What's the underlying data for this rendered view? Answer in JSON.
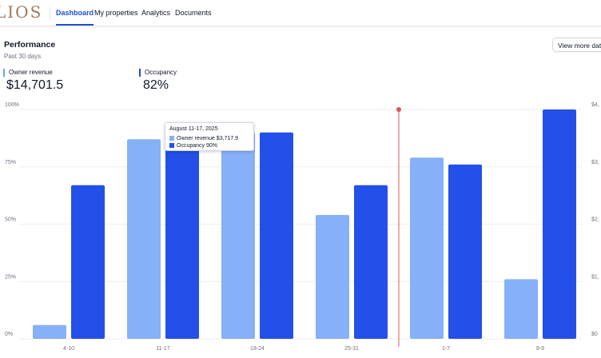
{
  "nav": {
    "logo": "LIOS",
    "tabs": [
      {
        "label": "Dashboard",
        "active": true
      },
      {
        "label": "My properties",
        "active": false
      },
      {
        "label": "Analytics",
        "active": false
      },
      {
        "label": "Documents",
        "active": false
      }
    ]
  },
  "performance": {
    "title": "Performance",
    "subtitle": "Past 30 days",
    "view_more_label": "View more data"
  },
  "metrics": {
    "owner_revenue": {
      "label": "Owner revenue",
      "value": "$14,701.5"
    },
    "occupancy": {
      "label": "Occupancy",
      "value": "82%"
    }
  },
  "colors": {
    "owner_revenue": "#86b0f7",
    "occupancy": "#2350e8",
    "marker": "#e0565b",
    "accent": "#1d4ed8"
  },
  "tooltip": {
    "title": "August 11-17, 2025",
    "rows": [
      {
        "label": "Owner revenue $3,717.9",
        "color": "#86b0f7"
      },
      {
        "label": "Occupancy 90%",
        "color": "#2350e8"
      }
    ]
  },
  "chart_data": {
    "type": "bar",
    "categories": [
      "4-10",
      "11-17",
      "18-24",
      "25-31",
      "1-7",
      "8-9"
    ],
    "series": [
      {
        "name": "Owner revenue",
        "values": [
          0.06,
          0.87,
          0.9,
          0.54,
          0.79,
          0.26
        ]
      },
      {
        "name": "Occupancy",
        "values": [
          0.67,
          0.9,
          0.9,
          0.67,
          0.76,
          1.0
        ]
      }
    ],
    "ylim": [
      0,
      1
    ],
    "y_ticks_left": [
      "0%",
      "25%",
      "50%",
      "75%",
      "100%"
    ],
    "y_ticks_right": [
      "$0",
      "$1,",
      "$2,",
      "$3,",
      "$4,"
    ],
    "marker_between": [
      "25-31",
      "1-7"
    ],
    "grid": true
  }
}
